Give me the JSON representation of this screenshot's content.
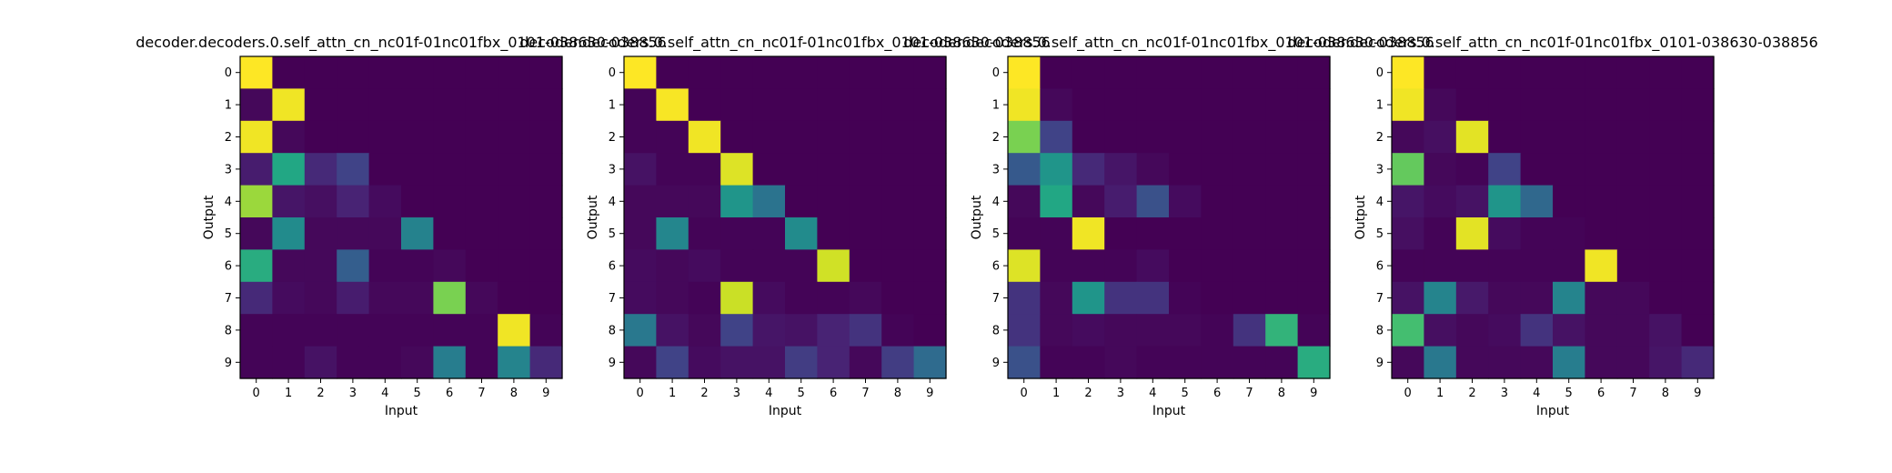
{
  "colors": {
    "viridis_low": "#440154",
    "viridis_high": "#fde725",
    "frame": "#000000",
    "background": "#ffffff"
  },
  "chart_data": [
    {
      "type": "heatmap",
      "title": "decoder.decoders.0.self_attn_cn_nc01f-01nc01fbx_0101-038630-038856",
      "xlabel": "Input",
      "ylabel": "Output",
      "x_ticks": [
        "0",
        "1",
        "2",
        "3",
        "4",
        "5",
        "6",
        "7",
        "8",
        "9"
      ],
      "y_ticks": [
        "0",
        "1",
        "2",
        "3",
        "4",
        "5",
        "6",
        "7",
        "8",
        "9"
      ],
      "colormap": "viridis",
      "range": [
        0,
        1
      ],
      "values": [
        [
          1.0,
          0,
          0,
          0,
          0,
          0,
          0,
          0,
          0,
          0
        ],
        [
          0.02,
          0.98,
          0,
          0,
          0,
          0,
          0,
          0,
          0,
          0
        ],
        [
          0.98,
          0.02,
          0,
          0,
          0,
          0,
          0,
          0,
          0,
          0
        ],
        [
          0.08,
          0.6,
          0.12,
          0.2,
          0,
          0,
          0,
          0,
          0,
          0
        ],
        [
          0.85,
          0.06,
          0.04,
          0.1,
          0.03,
          0,
          0,
          0,
          0,
          0
        ],
        [
          0.02,
          0.48,
          0.02,
          0.02,
          0.02,
          0.44,
          0,
          0,
          0,
          0
        ],
        [
          0.62,
          0.02,
          0.02,
          0.3,
          0.01,
          0.01,
          0.02,
          0,
          0,
          0
        ],
        [
          0.12,
          0.03,
          0.02,
          0.08,
          0.02,
          0.02,
          0.8,
          0.02,
          0,
          0
        ],
        [
          0.01,
          0.01,
          0.01,
          0.01,
          0.01,
          0.01,
          0.01,
          0.01,
          0.98,
          0.01
        ],
        [
          0.01,
          0.01,
          0.05,
          0.01,
          0.01,
          0.02,
          0.42,
          0.01,
          0.45,
          0.12
        ]
      ]
    },
    {
      "type": "heatmap",
      "title": "decoder.decoders.0.self_attn_cn_nc01f-01nc01fbx_0101-038630-038856",
      "xlabel": "Input",
      "ylabel": "Output",
      "x_ticks": [
        "0",
        "1",
        "2",
        "3",
        "4",
        "5",
        "6",
        "7",
        "8",
        "9"
      ],
      "y_ticks": [
        "0",
        "1",
        "2",
        "3",
        "4",
        "5",
        "6",
        "7",
        "8",
        "9"
      ],
      "colormap": "viridis",
      "range": [
        0,
        1
      ],
      "values": [
        [
          1.0,
          0,
          0,
          0,
          0,
          0,
          0,
          0,
          0,
          0
        ],
        [
          0.01,
          0.99,
          0,
          0,
          0,
          0,
          0,
          0,
          0,
          0
        ],
        [
          0.01,
          0.01,
          0.98,
          0,
          0,
          0,
          0,
          0,
          0,
          0
        ],
        [
          0.05,
          0.01,
          0.01,
          0.95,
          0,
          0,
          0,
          0,
          0,
          0
        ],
        [
          0.02,
          0.02,
          0.02,
          0.52,
          0.38,
          0,
          0,
          0,
          0,
          0
        ],
        [
          0.02,
          0.46,
          0.01,
          0.01,
          0.01,
          0.48,
          0,
          0,
          0,
          0
        ],
        [
          0.03,
          0.02,
          0.03,
          0.01,
          0.01,
          0.01,
          0.93,
          0,
          0,
          0
        ],
        [
          0.03,
          0.02,
          0.01,
          0.92,
          0.03,
          0.01,
          0.01,
          0.02,
          0,
          0
        ],
        [
          0.4,
          0.05,
          0.02,
          0.2,
          0.06,
          0.05,
          0.1,
          0.15,
          0.01,
          0
        ],
        [
          0.02,
          0.2,
          0.03,
          0.05,
          0.05,
          0.18,
          0.1,
          0.02,
          0.18,
          0.35
        ]
      ]
    },
    {
      "type": "heatmap",
      "title": "decoder.decoders.0.self_attn_cn_nc01f-01nc01fbx_0101-038630-038856",
      "xlabel": "Input",
      "ylabel": "Output",
      "x_ticks": [
        "0",
        "1",
        "2",
        "3",
        "4",
        "5",
        "6",
        "7",
        "8",
        "9"
      ],
      "y_ticks": [
        "0",
        "1",
        "2",
        "3",
        "4",
        "5",
        "6",
        "7",
        "8",
        "9"
      ],
      "colormap": "viridis",
      "range": [
        0,
        1
      ],
      "values": [
        [
          1.0,
          0,
          0,
          0,
          0,
          0,
          0,
          0,
          0,
          0
        ],
        [
          0.98,
          0.02,
          0,
          0,
          0,
          0,
          0,
          0,
          0,
          0
        ],
        [
          0.8,
          0.2,
          0,
          0,
          0,
          0,
          0,
          0,
          0,
          0
        ],
        [
          0.28,
          0.52,
          0.12,
          0.06,
          0.02,
          0,
          0,
          0,
          0,
          0
        ],
        [
          0.02,
          0.6,
          0.02,
          0.08,
          0.25,
          0.03,
          0,
          0,
          0,
          0
        ],
        [
          0.01,
          0.01,
          0.98,
          0,
          0,
          0,
          0,
          0,
          0,
          0
        ],
        [
          0.95,
          0.01,
          0.01,
          0.01,
          0.03,
          0,
          0,
          0,
          0,
          0
        ],
        [
          0.15,
          0.02,
          0.52,
          0.15,
          0.15,
          0.01,
          0,
          0,
          0,
          0
        ],
        [
          0.15,
          0.02,
          0.03,
          0.02,
          0.02,
          0.02,
          0.01,
          0.15,
          0.65,
          0.01
        ],
        [
          0.25,
          0.01,
          0.01,
          0.02,
          0.01,
          0.01,
          0.01,
          0.01,
          0.01,
          0.62
        ]
      ]
    },
    {
      "type": "heatmap",
      "title": "decoder.decoders.0.self_attn_cn_nc01f-01nc01fbx_0101-038630-038856",
      "xlabel": "Input",
      "ylabel": "Output",
      "x_ticks": [
        "0",
        "1",
        "2",
        "3",
        "4",
        "5",
        "6",
        "7",
        "8",
        "9"
      ],
      "y_ticks": [
        "0",
        "1",
        "2",
        "3",
        "4",
        "5",
        "6",
        "7",
        "8",
        "9"
      ],
      "colormap": "viridis",
      "range": [
        0,
        1
      ],
      "values": [
        [
          1.0,
          0,
          0,
          0,
          0,
          0,
          0,
          0,
          0,
          0
        ],
        [
          0.98,
          0.02,
          0,
          0,
          0,
          0,
          0,
          0,
          0,
          0
        ],
        [
          0.02,
          0.04,
          0.96,
          0,
          0,
          0,
          0,
          0,
          0,
          0
        ],
        [
          0.76,
          0.02,
          0.01,
          0.2,
          0,
          0,
          0,
          0,
          0,
          0
        ],
        [
          0.06,
          0.03,
          0.05,
          0.52,
          0.34,
          0,
          0,
          0,
          0,
          0
        ],
        [
          0.04,
          0.01,
          0.96,
          0.03,
          0.01,
          0.01,
          0,
          0,
          0,
          0
        ],
        [
          0.01,
          0.01,
          0.01,
          0.01,
          0.01,
          0.01,
          0.98,
          0,
          0,
          0
        ],
        [
          0.05,
          0.45,
          0.07,
          0.02,
          0.02,
          0.45,
          0.02,
          0.02,
          0,
          0
        ],
        [
          0.7,
          0.04,
          0.02,
          0.03,
          0.15,
          0.05,
          0.02,
          0.02,
          0.05,
          0
        ],
        [
          0.02,
          0.4,
          0.02,
          0.02,
          0.02,
          0.42,
          0.02,
          0.02,
          0.06,
          0.12
        ]
      ]
    }
  ]
}
